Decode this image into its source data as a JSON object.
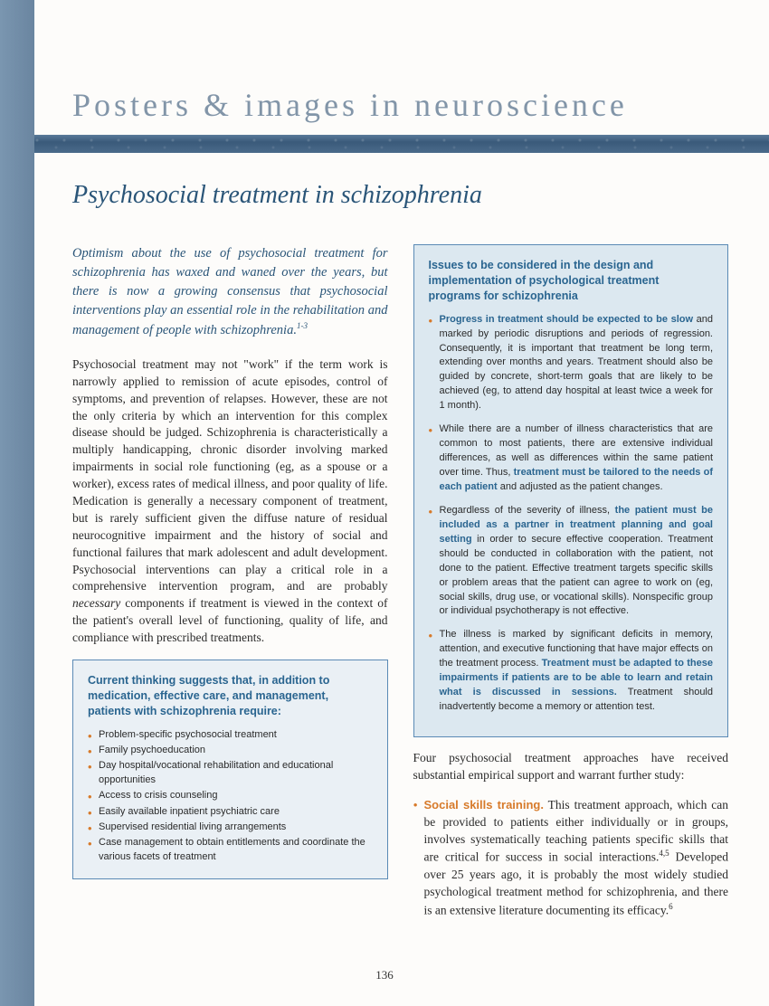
{
  "header": {
    "title": "Posters & images in neuroscience"
  },
  "subtitle": "Psychosocial treatment in schizophrenia",
  "intro": "Optimism about the use of psychosocial treatment for schizophrenia has waxed and waned over the years, but there is now a growing consensus that psychosocial interventions play an essential role in the rehabilitation and management of people with schizophrenia.",
  "intro_ref": "1-3",
  "body1_a": "Psychosocial treatment may not \"work\" if the term work is narrowly applied to remission of acute episodes, control of symptoms, and prevention of relapses. However, these are not the only criteria by which an intervention for this complex disease should be judged. Schizophrenia is characteristically a multiply handicapping, chronic disorder involving marked impairments in social role functioning (eg, as a spouse or a worker), excess rates of medical illness, and poor quality of life. Medication is generally a necessary component of treatment, but is rarely sufficient given the diffuse nature of residual neurocognitive impairment and the history of social and functional failures that mark adolescent and adult development. Psychosocial interventions can play a critical role in a comprehensive intervention program, and are probably ",
  "body1_emph": "necessary",
  "body1_b": " components if treatment is viewed in the context of the patient's overall level of functioning, quality of life, and compliance with prescribed treatments.",
  "box_left": {
    "title": "Current thinking suggests that, in addition to medication, effective care, and management, patients with schizophrenia require:",
    "items": [
      "Problem-specific psychosocial treatment",
      "Family psychoeducation",
      "Day hospital/vocational rehabilitation and educational opportunities",
      "Access to crisis counseling",
      "Easily available inpatient psychiatric care",
      "Supervised residential living arrangements",
      "Case management to obtain entitlements and coordinate the various facets of treatment"
    ]
  },
  "box_right": {
    "title": "Issues to be considered in the design and implementation of psychological treatment programs for schizophrenia",
    "items": [
      {
        "hl": "Progress in treatment should be expected to be slow",
        "rest": " and marked by periodic disruptions and periods of regression. Consequently, it is important that treatment be long term, extending over months and years. Treatment should also be guided by concrete, short-term goals that are likely to be achieved (eg, to attend day hospital at least twice a week for 1 month)."
      },
      {
        "pre": "While there are a number of illness characteristics that are common to most patients, there are extensive individual differences, as well as differences within the same patient over time. Thus, ",
        "hl": "treatment must be tailored to the needs of each patient",
        "rest": " and adjusted as the patient changes."
      },
      {
        "pre": "Regardless of the severity of illness, ",
        "hl": "the patient must be included as a partner in treatment planning and goal setting",
        "rest": " in order to secure effective cooperation. Treatment should be conducted in collaboration with the patient, not done to the patient. Effective treatment targets specific skills or problem areas that the patient can agree to work on (eg, social skills, drug use, or vocational skills). Nonspecific group or individual psychotherapy is not effective."
      },
      {
        "pre": "The illness is marked by significant deficits in memory, attention, and executive functioning that have major effects on the treatment process. ",
        "hl": "Treatment must be adapted to these impairments if patients are to be able to learn and retain what is discussed in sessions.",
        "rest": " Treatment should inadvertently become a memory or attention test."
      }
    ]
  },
  "body2": "Four psychosocial treatment approaches have received substantial empirical support and warrant further study:",
  "approach": {
    "label": "Social skills training.",
    "text_a": " This treatment approach, which can be provided to patients either individually or in groups, involves systematically teaching patients specific skills that are critical for success in social interactions.",
    "ref1": "4,5",
    "text_b": " Developed over 25 years ago, it is probably the most widely studied psychological treatment method for schizophrenia, and there is an extensive literature documenting its efficacy.",
    "ref2": "6"
  },
  "page_number": "136",
  "colors": {
    "sidebar": "#7a96b0",
    "title_text": "#8295a8",
    "accent_blue": "#2a6590",
    "accent_orange": "#d77a2a",
    "box_bg_left": "#eaf0f5",
    "box_bg_right": "#dce8f0",
    "box_border": "#5a8ab5"
  }
}
